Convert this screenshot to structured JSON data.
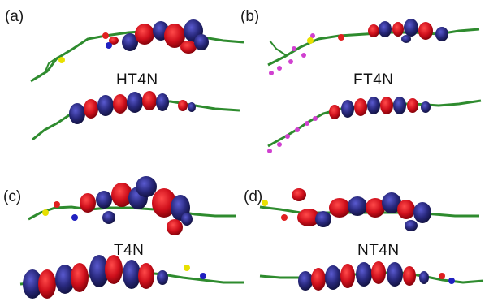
{
  "panels": [
    {
      "letter": "(a)",
      "name": "HT4N"
    },
    {
      "letter": "(b)",
      "name": "FT4N"
    },
    {
      "letter": "(c)",
      "name": "T4N"
    },
    {
      "letter": "(d)",
      "name": "NT4N"
    }
  ],
  "colors": {
    "orbital_positive": "#d0101c",
    "orbital_negative": "#28287c",
    "bond": "#2e8b2e",
    "hydrogen": "#d8d8d8",
    "sulfur": "#e8e000",
    "oxygen": "#e02020",
    "nitrogen": "#2020c0",
    "fluorine": "#d040d0"
  }
}
